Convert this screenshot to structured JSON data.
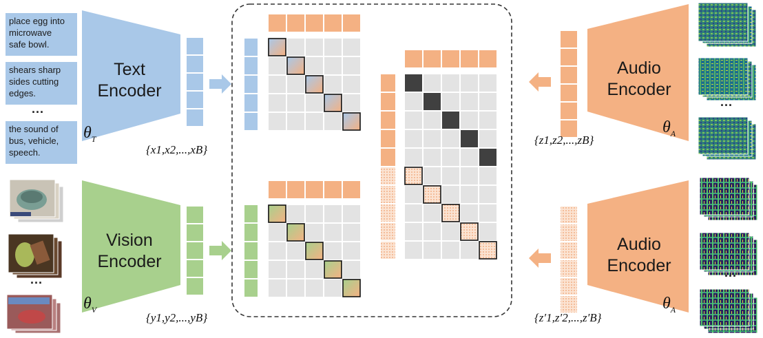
{
  "captions": [
    "place egg into\nmicrowave\nsafe bowl.",
    "shears sharp\nsides cutting\nedges.",
    "the sound of\nbus, vehicle,\nspeech."
  ],
  "ellipsis": "...",
  "encoders": {
    "text": "Text\nEncoder",
    "vision": "Vision\nEncoder",
    "audio_top": "Audio\nEncoder",
    "audio_bottom": "Audio\nEncoder"
  },
  "params": {
    "text": {
      "symbol": "θ",
      "sub": "T"
    },
    "vision": {
      "symbol": "θ",
      "sub": "V"
    },
    "audio_top": {
      "symbol": "θ",
      "sub": "A"
    },
    "audio_bottom": {
      "symbol": "θ",
      "sub": "A"
    }
  },
  "embeddings": {
    "text": "{x1,x2,...,xB}",
    "vision": "{y1,y2,...,yB}",
    "audio": "{z1,z2,...,zB}",
    "audio_aug": "{z′1,z′2,...,z′B}"
  },
  "colors": {
    "text": "#a9c8e8",
    "vision": "#a8d08d",
    "audio": "#f4b183",
    "grid": "#e3e3e3",
    "dark": "#404040",
    "dash": "#333333"
  }
}
